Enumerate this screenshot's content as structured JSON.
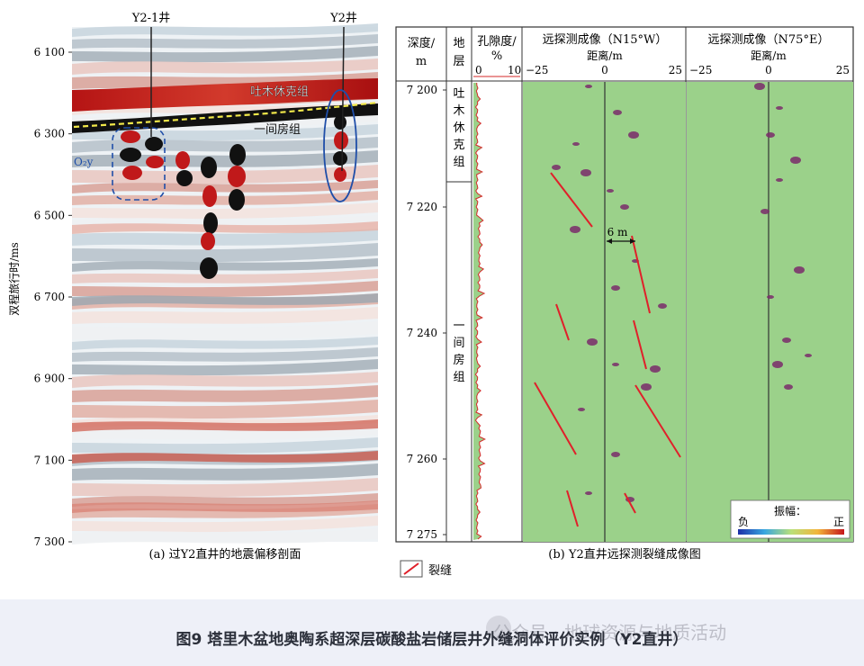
{
  "panel_a": {
    "well_y2_1": "Y2-1井",
    "well_y2": "Y2井",
    "y_axis_label": "双程旅行时/ms",
    "y_ticks": [
      "6 100",
      "6 300",
      "6 500",
      "6 700",
      "6 900",
      "7 100",
      "7 300"
    ],
    "label_tumuxiuke": "吐木休克组",
    "label_yijianfang": "一间房组",
    "label_o2y": "O₂y",
    "caption": "(a) 过Y2直井的地震偏移剖面"
  },
  "panel_b": {
    "header_depth": "深度/",
    "header_depth_unit": "m",
    "header_strata": "地",
    "header_strata2": "层",
    "header_porosity": "孔隙度/",
    "header_porosity_unit": "%",
    "porosity_ticks": [
      "0",
      "10"
    ],
    "header_image1": "远探测成像（N15°W）",
    "header_image2": "远探测成像（N75°E）",
    "distance_label": "距离/m",
    "distance_ticks": [
      "−25",
      "0",
      "25"
    ],
    "depth_ticks": [
      "7 200",
      "7 220",
      "7 240",
      "7 260",
      "7 275"
    ],
    "strata_upper": "吐木休克组",
    "strata_lower": "一间房组",
    "spacing_label": "6 m",
    "amplitude_label": "振幅：",
    "amp_neg": "负",
    "amp_pos": "正",
    "caption": "(b) Y2直井远探测裂缝成像图"
  },
  "legend": {
    "fracture": "裂缝"
  },
  "figure_caption": "图9 塔里木盆地奥陶系超深层碳酸盐岩储层井外缝洞体评价实例（Y2直井）",
  "watermark": "公众号 · 地球资源与地质活动",
  "colors": {
    "background_green": "#9bd18a",
    "fracture_red": "#e0202a",
    "ellipse_blue": "#1f4ea8",
    "strong_red": "#c0191a"
  }
}
